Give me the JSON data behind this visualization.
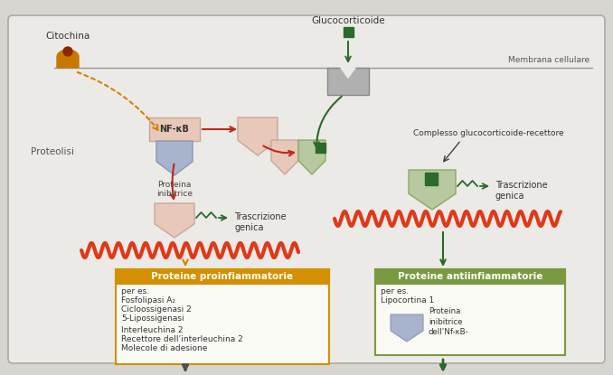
{
  "bg_color": "#d8d5d0",
  "inner_bg": "#eceae6",
  "color_nfkb_box": "#e8c8b8",
  "color_nfkb_border": "#c8a898",
  "color_inhibitor": "#a8b4cc",
  "color_inhibitor_border": "#8898b8",
  "color_receptor_green": "#b8c8a0",
  "color_receptor_green_border": "#88aa66",
  "color_receptor_gray": "#b0b0b0",
  "color_receptor_gray_border": "#888888",
  "color_glucocorticoid": "#2a6a2a",
  "color_wave_red": "#e03818",
  "color_arrow_orange": "#d88000",
  "color_arrow_orange_dot": "#d88000",
  "color_arrow_red": "#c02818",
  "color_arrow_green": "#2a6a2a",
  "color_arrow_dark": "#505050",
  "color_citochina_body": "#c87800",
  "color_citochina_head": "#8b2800",
  "label_citochina": "Citochina",
  "label_glucocorticoide": "Glucocorticoide",
  "label_membrana": "Membrana cellulare",
  "label_proteolisi": "Proteolisi",
  "label_proteina_inibitrice": "Proteina\ninibitrice",
  "label_nfkb": "NF-κB",
  "label_trascrizione": "Trascrizione\ngenica",
  "label_complesso": "Complesso glucocorticoide-recettore",
  "box1_title": "Proteine proinfiammatorie",
  "box1_title_bg": "#d49000",
  "box1_border": "#d49000",
  "box1_bg": "#fafaf5",
  "box1_text_line1": "per es.",
  "box1_text_line2": "Fosfolipasi A₂",
  "box1_text_line3": "Cicloossigenasi 2",
  "box1_text_line4": "5-Lipossigenasi",
  "box1_text_line5": "Interleuchina 2",
  "box1_text_line6": "Recettore dell’interleuchina 2",
  "box1_text_line7": "Molecole di adesione",
  "box2_title": "Proteine antiinfiammatorie",
  "box2_title_bg": "#7a9a40",
  "box2_border": "#7a9a40",
  "box2_bg": "#fafaf5",
  "box2_text_line1": "per es.",
  "box2_text_line2": "Lipocortina 1",
  "box2_label_proteina": "Proteina\ninibitrice\ndell’Nf-κB-"
}
